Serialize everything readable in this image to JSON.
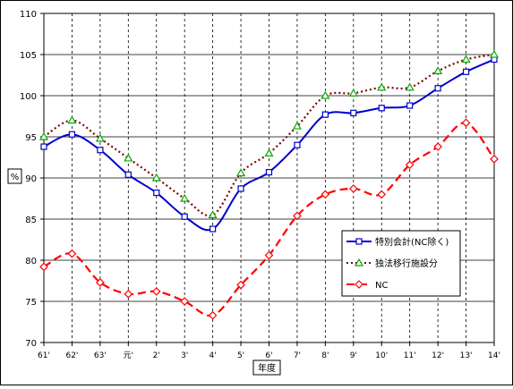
{
  "chart_data": {
    "type": "line",
    "title": "",
    "ylabel": "%",
    "xlabel": "年度",
    "ylim": [
      70,
      110
    ],
    "yticks": [
      70,
      75,
      80,
      85,
      90,
      95,
      100,
      105,
      110
    ],
    "categories": [
      "61'",
      "62'",
      "63'",
      "元'",
      "2'",
      "3'",
      "4'",
      "5'",
      "6'",
      "7'",
      "8'",
      "9'",
      "10'",
      "11'",
      "12'",
      "13'",
      "14'"
    ],
    "grid": {
      "horizontal": "solid",
      "vertical": "dashed"
    },
    "legend_position": "right-middle",
    "series": [
      {
        "name": "特別会計(NC除く)",
        "color": "#0000cc",
        "line_style": "solid",
        "marker": "square",
        "values": [
          93.8,
          95.3,
          93.4,
          90.4,
          88.2,
          85.3,
          83.8,
          88.7,
          90.7,
          94.0,
          97.7,
          97.9,
          98.5,
          98.8,
          100.9,
          102.9,
          104.4
        ]
      },
      {
        "name": "独法移行施設分",
        "color": "#800000",
        "line_style": "dotted",
        "marker": "triangle",
        "marker_color": "#00aa00",
        "values": [
          95.0,
          97.0,
          94.8,
          92.4,
          90.0,
          87.5,
          85.5,
          90.6,
          93.0,
          96.3,
          100.0,
          100.3,
          101.0,
          101.0,
          103.0,
          104.4,
          105.0
        ]
      },
      {
        "name": "NC",
        "color": "#ff0000",
        "line_style": "dashed",
        "marker": "diamond",
        "values": [
          79.2,
          80.8,
          77.3,
          75.9,
          76.2,
          75.0,
          73.3,
          77.0,
          80.6,
          85.4,
          88.0,
          88.7,
          88.0,
          91.6,
          93.8,
          96.7,
          92.3
        ]
      }
    ]
  }
}
